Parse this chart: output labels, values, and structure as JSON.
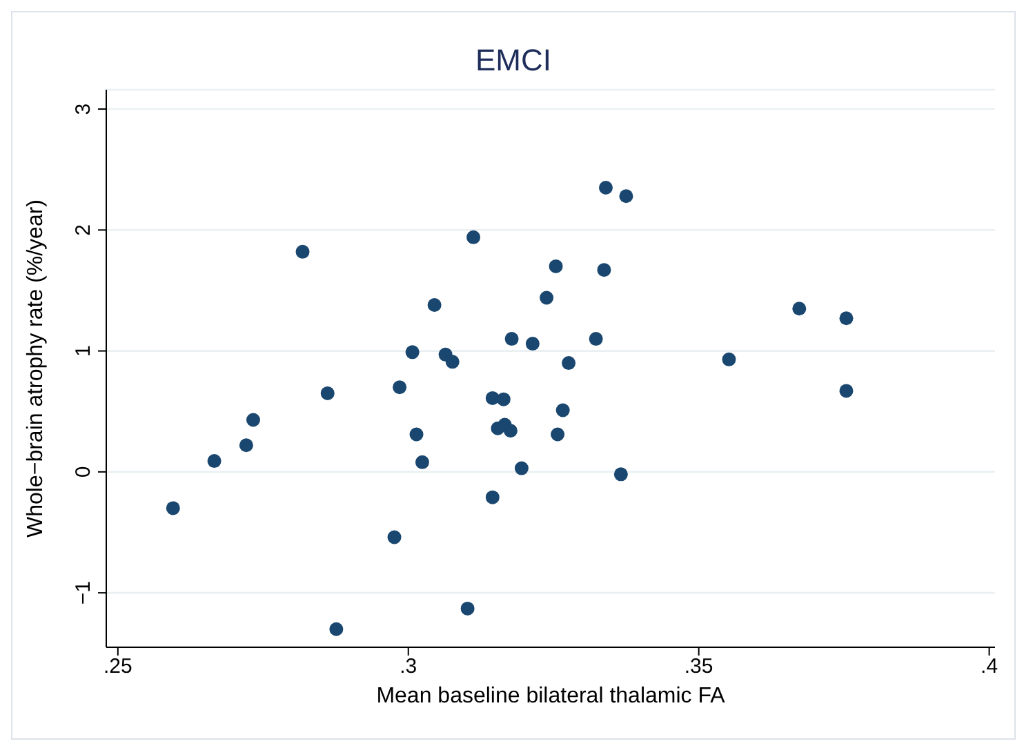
{
  "chart_data": {
    "type": "scatter",
    "title": "EMCI",
    "xlabel": "Mean baseline bilateral thalamic FA",
    "ylabel": "Whole−brain atrophy rate (%/year)",
    "color": "#1a476f",
    "marker": "circle",
    "grid": "y",
    "xlim": [
      0.248,
      0.401
    ],
    "ylim": [
      -1.45,
      3.16
    ],
    "xticks": [
      {
        "value": 0.25,
        "label": ".25"
      },
      {
        "value": 0.3,
        "label": ".3"
      },
      {
        "value": 0.35,
        "label": ".35"
      },
      {
        "value": 0.4,
        "label": ".4"
      }
    ],
    "yticks": [
      {
        "value": -1,
        "label": "−1"
      },
      0,
      1,
      2,
      3
    ],
    "x": [
      0.2595,
      0.2666,
      0.2721,
      0.2733,
      0.2818,
      0.2861,
      0.2876,
      0.2976,
      0.2985,
      0.3007,
      0.3014,
      0.3024,
      0.3045,
      0.3064,
      0.3076,
      0.3102,
      0.3112,
      0.3145,
      0.3145,
      0.3154,
      0.3164,
      0.3166,
      0.3176,
      0.3178,
      0.3195,
      0.3214,
      0.3238,
      0.3254,
      0.3257,
      0.3266,
      0.3276,
      0.3323,
      0.3337,
      0.334,
      0.3366,
      0.3375,
      0.3552,
      0.3673,
      0.3754,
      0.3754
    ],
    "values": [
      -0.3,
      0.09,
      0.22,
      0.43,
      1.82,
      0.65,
      -1.3,
      -0.54,
      0.7,
      0.99,
      0.31,
      0.08,
      1.38,
      0.97,
      0.91,
      -1.13,
      1.94,
      0.61,
      -0.21,
      0.36,
      0.6,
      0.39,
      0.34,
      1.1,
      0.03,
      1.06,
      1.44,
      1.7,
      0.31,
      0.51,
      0.9,
      1.1,
      1.67,
      2.35,
      -0.02,
      2.28,
      0.93,
      1.35,
      1.27,
      0.67
    ]
  }
}
